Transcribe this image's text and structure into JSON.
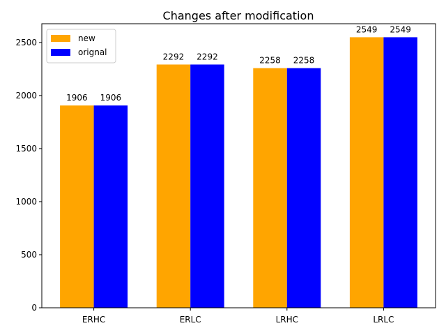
{
  "chart_data": {
    "type": "bar",
    "title": "Changes after modification",
    "xlabel": "",
    "ylabel": "",
    "categories": [
      "ERHC",
      "ERLC",
      "LRHC",
      "LRLC"
    ],
    "series": [
      {
        "name": "new",
        "color": "#ffa500",
        "values": [
          1906,
          2292,
          2258,
          2549
        ]
      },
      {
        "name": "orignal",
        "color": "#0000ff",
        "values": [
          1906,
          2292,
          2258,
          2549
        ]
      }
    ],
    "ylim": [
      0,
      2676.45
    ],
    "yticks": [
      0,
      500,
      1000,
      1500,
      2000,
      2500
    ],
    "grid": false,
    "legend_position": "upper-left"
  }
}
